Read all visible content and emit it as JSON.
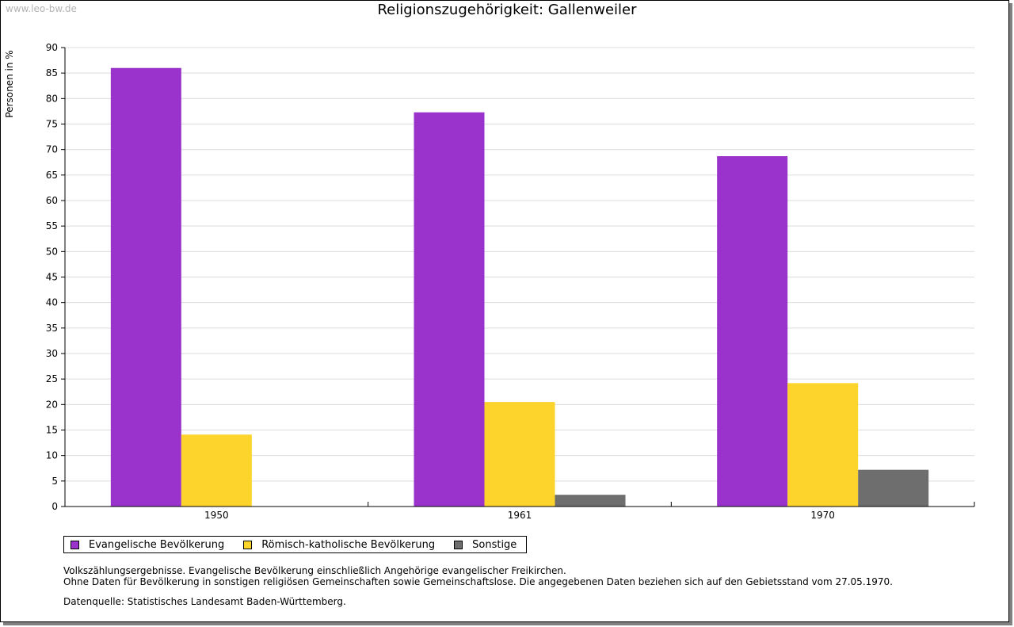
{
  "watermark": "www.leo-bw.de",
  "chart_data": {
    "type": "bar",
    "title": "Religionszugehörigkeit: Gallenweiler",
    "xlabel": "",
    "ylabel": "Personen in %",
    "ylim": [
      0,
      90
    ],
    "yticks": [
      0,
      5,
      10,
      15,
      20,
      25,
      30,
      35,
      40,
      45,
      50,
      55,
      60,
      65,
      70,
      75,
      80,
      85,
      90
    ],
    "grid": true,
    "legend_position": "bottom-left",
    "categories": [
      "1950",
      "1961",
      "1970"
    ],
    "series": [
      {
        "name": "Evangelische Bevölkerung",
        "color": "#9933cc",
        "values": [
          86.0,
          77.3,
          68.7
        ]
      },
      {
        "name": "Römisch-katholische Bevölkerung",
        "color": "#fcd42c",
        "values": [
          14.1,
          20.5,
          24.2
        ]
      },
      {
        "name": "Sonstige",
        "color": "#6e6e6e",
        "values": [
          0.0,
          2.3,
          7.2
        ]
      }
    ]
  },
  "notes": [
    "Volkszählungsergebnisse. Evangelische Bevölkerung einschließlich Angehörige evangelischer Freikirchen.",
    "Ohne Daten für Bevölkerung in sonstigen religiösen Gemeinschaften sowie Gemeinschaftslose. Die angegebenen Daten beziehen sich auf den Gebietsstand vom 27.05.1970."
  ],
  "source": "Datenquelle: Statistisches Landesamt Baden-Württemberg."
}
